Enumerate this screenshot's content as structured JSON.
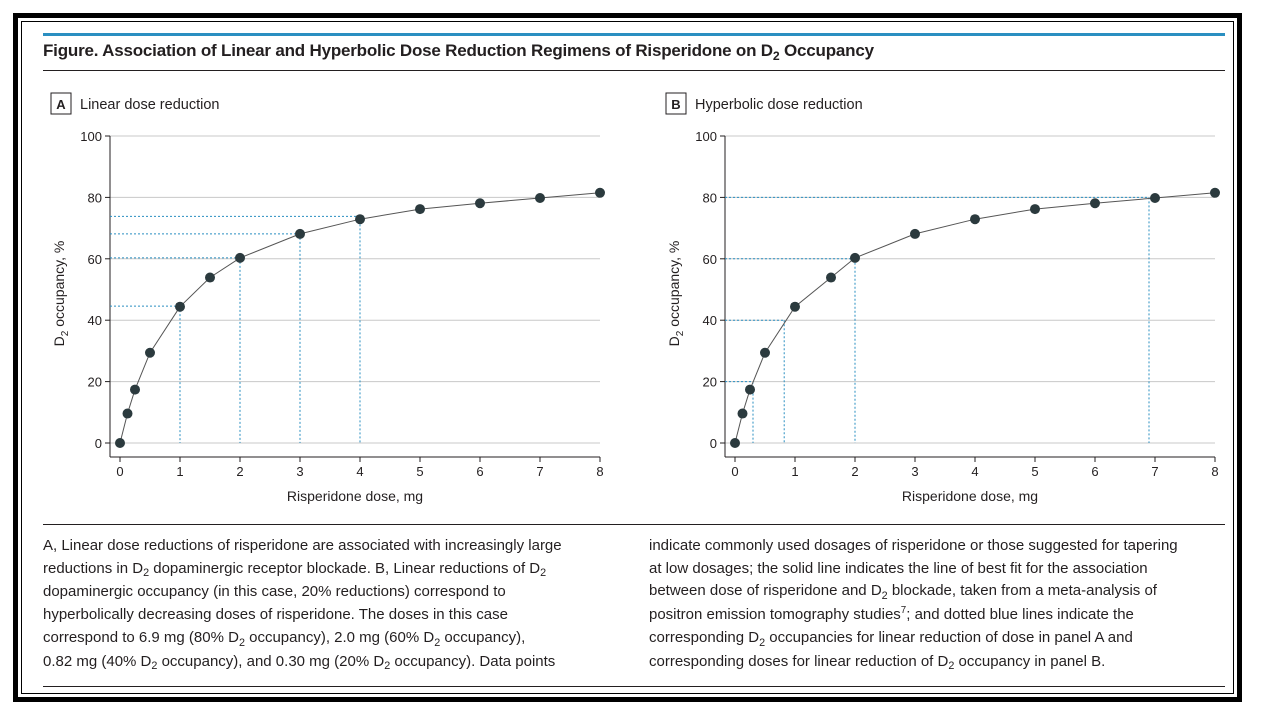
{
  "figure": {
    "title_parts": [
      "Figure. Association of Linear and Hyperbolic Dose Reduction Regimens of Risperidone on D",
      "2",
      " Occupancy"
    ],
    "accent_color": "#2a8fc1",
    "point_color": "#2b3a3e",
    "guide_color": "#2a8fc1"
  },
  "chart_data": [
    {
      "type": "scatter",
      "panel_letter": "A",
      "title": "Linear dose reduction",
      "xlabel": "Risperidone dose, mg",
      "ylabel_parts": [
        "D",
        "2",
        " occupancy, %"
      ],
      "xlim": [
        0,
        8
      ],
      "ylim": [
        0,
        100
      ],
      "xticks": [
        0,
        1,
        2,
        3,
        4,
        5,
        6,
        7,
        8
      ],
      "yticks": [
        0,
        20,
        40,
        60,
        80,
        100
      ],
      "grid": "horizontal",
      "points": [
        {
          "x": 0,
          "y": 0
        },
        {
          "x": 0.125,
          "y": 9.6
        },
        {
          "x": 0.25,
          "y": 17.4
        },
        {
          "x": 0.5,
          "y": 29.4
        },
        {
          "x": 1,
          "y": 44.4
        },
        {
          "x": 1.5,
          "y": 53.9
        },
        {
          "x": 2,
          "y": 60.3
        },
        {
          "x": 3,
          "y": 68.1
        },
        {
          "x": 4,
          "y": 72.9
        },
        {
          "x": 5,
          "y": 76.2
        },
        {
          "x": 6,
          "y": 78.1
        },
        {
          "x": 7,
          "y": 79.8
        },
        {
          "x": 8,
          "y": 81.5
        }
      ],
      "guides": [
        {
          "x": 1,
          "y": 44.6
        },
        {
          "x": 2,
          "y": 60.3
        },
        {
          "x": 3,
          "y": 68.1
        },
        {
          "x": 4,
          "y": 73.8
        }
      ]
    },
    {
      "type": "scatter",
      "panel_letter": "B",
      "title": "Hyperbolic dose reduction",
      "xlabel": "Risperidone dose, mg",
      "ylabel_parts": [
        "D",
        "2",
        " occupancy, %"
      ],
      "xlim": [
        0,
        8
      ],
      "ylim": [
        0,
        100
      ],
      "xticks": [
        0,
        1,
        2,
        3,
        4,
        5,
        6,
        7,
        8
      ],
      "yticks": [
        0,
        20,
        40,
        60,
        80,
        100
      ],
      "grid": "horizontal",
      "points": [
        {
          "x": 0,
          "y": 0
        },
        {
          "x": 0.125,
          "y": 9.6
        },
        {
          "x": 0.25,
          "y": 17.4
        },
        {
          "x": 0.5,
          "y": 29.4
        },
        {
          "x": 1,
          "y": 44.4
        },
        {
          "x": 1.6,
          "y": 53.9
        },
        {
          "x": 2,
          "y": 60.3
        },
        {
          "x": 3,
          "y": 68.1
        },
        {
          "x": 4,
          "y": 72.9
        },
        {
          "x": 5,
          "y": 76.2
        },
        {
          "x": 6,
          "y": 78.1
        },
        {
          "x": 7,
          "y": 79.8
        },
        {
          "x": 8,
          "y": 81.5
        }
      ],
      "guides": [
        {
          "x": 0.3,
          "y": 20
        },
        {
          "x": 0.82,
          "y": 40
        },
        {
          "x": 2.0,
          "y": 60
        },
        {
          "x": 6.9,
          "y": 80
        }
      ]
    }
  ],
  "caption": {
    "left_lines": [
      [
        {
          "t": "A, Linear dose reductions of risperidone are associated with increasingly large"
        }
      ],
      [
        {
          "t": "reductions in D"
        },
        {
          "t": "2",
          "sub": true
        },
        {
          "t": " dopaminergic receptor blockade. B, Linear reductions of D"
        },
        {
          "t": "2",
          "sub": true
        }
      ],
      [
        {
          "t": "dopaminergic occupancy (in this case, 20% reductions) correspond to"
        }
      ],
      [
        {
          "t": "hyperbolically decreasing doses of risperidone. The doses in this case"
        }
      ],
      [
        {
          "t": "correspond to 6.9 mg (80% D"
        },
        {
          "t": "2",
          "sub": true
        },
        {
          "t": " occupancy), 2.0 mg (60% D"
        },
        {
          "t": "2",
          "sub": true
        },
        {
          "t": " occupancy),"
        }
      ],
      [
        {
          "t": "0.82 mg (40% D"
        },
        {
          "t": "2",
          "sub": true
        },
        {
          "t": " occupancy), and 0.30 mg (20% D"
        },
        {
          "t": "2",
          "sub": true
        },
        {
          "t": " occupancy). Data points"
        }
      ]
    ],
    "right_lines": [
      [
        {
          "t": "indicate commonly used dosages of risperidone or those suggested for tapering"
        }
      ],
      [
        {
          "t": "at low dosages; the solid line indicates the line of best fit for the association"
        }
      ],
      [
        {
          "t": "between dose of risperidone and D"
        },
        {
          "t": "2",
          "sub": true
        },
        {
          "t": " blockade, taken from a meta-analysis of"
        }
      ],
      [
        {
          "t": "positron emission tomography studies"
        },
        {
          "t": "7",
          "sup": true
        },
        {
          "t": "; and dotted blue lines indicate the"
        }
      ],
      [
        {
          "t": "corresponding D"
        },
        {
          "t": "2",
          "sub": true
        },
        {
          "t": " occupancies for linear reduction of dose in panel A and"
        }
      ],
      [
        {
          "t": "corresponding doses for linear reduction of D"
        },
        {
          "t": "2",
          "sub": true
        },
        {
          "t": " occupancy in panel B."
        }
      ]
    ]
  }
}
